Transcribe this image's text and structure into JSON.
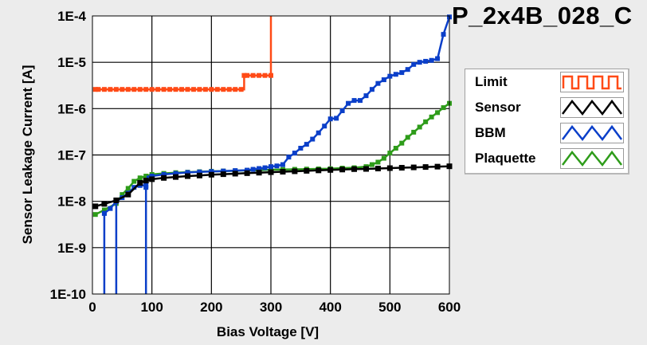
{
  "chart_data": {
    "type": "line",
    "title": "P_2x4B_028_C",
    "xlabel": "Bias Voltage [V]",
    "ylabel": "Sensor Leakage Current [A]",
    "xlim": [
      0,
      600
    ],
    "ylim": [
      1e-10,
      0.0001
    ],
    "y_scale": "log",
    "x_ticks": [
      0,
      100,
      200,
      300,
      400,
      500,
      600
    ],
    "x_tick_labels": [
      "0",
      "100",
      "200",
      "300",
      "400",
      "500",
      "600"
    ],
    "y_ticks": [
      1e-10,
      1e-09,
      1e-08,
      1e-07,
      1e-06,
      1e-05,
      0.0001
    ],
    "y_tick_labels": [
      "1E-10",
      "1E-9",
      "1E-8",
      "1E-7",
      "1E-6",
      "1E-5",
      "1E-4"
    ],
    "grid": true,
    "legend_position": "right",
    "series": [
      {
        "name": "Limit",
        "color": "#ff4a16",
        "step": true,
        "x": [
          5,
          10,
          20,
          30,
          40,
          50,
          60,
          70,
          80,
          90,
          100,
          110,
          120,
          130,
          140,
          150,
          160,
          170,
          180,
          190,
          200,
          210,
          220,
          230,
          240,
          250,
          255,
          260,
          270,
          280,
          290,
          300,
          300
        ],
        "y": [
          2.6e-06,
          2.6e-06,
          2.6e-06,
          2.6e-06,
          2.6e-06,
          2.6e-06,
          2.6e-06,
          2.6e-06,
          2.6e-06,
          2.6e-06,
          2.6e-06,
          2.6e-06,
          2.6e-06,
          2.6e-06,
          2.6e-06,
          2.6e-06,
          2.6e-06,
          2.6e-06,
          2.6e-06,
          2.6e-06,
          2.6e-06,
          2.6e-06,
          2.6e-06,
          2.6e-06,
          2.6e-06,
          2.6e-06,
          5.2e-06,
          5.2e-06,
          5.2e-06,
          5.2e-06,
          5.2e-06,
          5.2e-06,
          0.0001
        ]
      },
      {
        "name": "Sensor",
        "color": "#000000",
        "step": false,
        "x": [
          5,
          20,
          40,
          60,
          80,
          90,
          100,
          120,
          140,
          160,
          180,
          200,
          220,
          240,
          260,
          280,
          300,
          320,
          340,
          360,
          380,
          400,
          420,
          440,
          460,
          480,
          500,
          520,
          540,
          560,
          580,
          600
        ],
        "y": [
          7.8e-09,
          8.8e-09,
          1.05e-08,
          1.4e-08,
          2.5e-08,
          2.8e-08,
          3e-08,
          3.2e-08,
          3.35e-08,
          3.5e-08,
          3.6e-08,
          3.75e-08,
          3.85e-08,
          3.95e-08,
          4.05e-08,
          4.15e-08,
          4.25e-08,
          4.35e-08,
          4.45e-08,
          4.55e-08,
          4.65e-08,
          4.75e-08,
          4.85e-08,
          4.95e-08,
          5e-08,
          5.1e-08,
          5.2e-08,
          5.3e-08,
          5.4e-08,
          5.5e-08,
          5.6e-08,
          5.7e-08
        ]
      },
      {
        "name": "BBM",
        "color": "#0b3fc9",
        "step": false,
        "x": [
          20,
          20,
          20,
          30,
          40,
          40,
          40,
          50,
          60,
          70,
          80,
          90,
          90,
          90,
          95,
          100,
          120,
          140,
          160,
          180,
          200,
          220,
          240,
          260,
          270,
          280,
          290,
          300,
          310,
          320,
          330,
          340,
          350,
          360,
          370,
          380,
          390,
          400,
          410,
          420,
          430,
          440,
          450,
          460,
          470,
          480,
          490,
          500,
          510,
          520,
          530,
          540,
          550,
          560,
          570,
          580,
          590,
          600
        ],
        "y": [
          1e-10,
          5.5e-09,
          5.5e-09,
          7e-09,
          1e-08,
          1e-10,
          1e-08,
          1.2e-08,
          1.5e-08,
          2e-08,
          2.2e-08,
          2.2e-08,
          1e-10,
          2e-08,
          3.2e-08,
          3.5e-08,
          3.8e-08,
          4e-08,
          4.2e-08,
          4.3e-08,
          4.4e-08,
          4.5e-08,
          4.6e-08,
          4.7e-08,
          4.9e-08,
          5.1e-08,
          5.3e-08,
          5.6e-08,
          5.8e-08,
          6.2e-08,
          9e-08,
          1.1e-07,
          1.4e-07,
          1.7e-07,
          2.2e-07,
          3e-07,
          4.2e-07,
          6e-07,
          6.2e-07,
          9e-07,
          1.3e-06,
          1.5e-06,
          1.5e-06,
          1.9e-06,
          2.6e-06,
          3.5e-06,
          4.2e-06,
          5e-06,
          5.5e-06,
          6e-06,
          7e-06,
          9e-06,
          1e-05,
          1.05e-05,
          1.1e-05,
          1.2e-05,
          4e-05,
          9.5e-05
        ]
      },
      {
        "name": "Plaquette",
        "color": "#2e9c1a",
        "step": false,
        "x": [
          5,
          20,
          40,
          50,
          60,
          70,
          80,
          90,
          100,
          120,
          140,
          160,
          180,
          200,
          220,
          240,
          260,
          280,
          300,
          320,
          340,
          360,
          380,
          400,
          420,
          440,
          460,
          470,
          480,
          490,
          500,
          510,
          520,
          530,
          540,
          550,
          560,
          570,
          580,
          590,
          600
        ],
        "y": [
          5.2e-09,
          6.5e-09,
          9e-09,
          1.4e-08,
          1.9e-08,
          2.7e-08,
          3.2e-08,
          3.5e-08,
          3.8e-08,
          4e-08,
          4.15e-08,
          4.25e-08,
          4.35e-08,
          4.45e-08,
          4.5e-08,
          4.55e-08,
          4.65e-08,
          4.7e-08,
          4.8e-08,
          4.85e-08,
          4.9e-08,
          4.95e-08,
          5e-08,
          5.05e-08,
          5.2e-08,
          5.3e-08,
          5.6e-08,
          6.2e-08,
          7e-08,
          8.5e-08,
          1.1e-07,
          1.4e-07,
          1.8e-07,
          2.4e-07,
          3.1e-07,
          4e-07,
          5.2e-07,
          6.6e-07,
          8.2e-07,
          1.05e-06,
          1.3e-06
        ]
      }
    ]
  },
  "legend": {
    "items": [
      {
        "label": "Limit",
        "color": "#ff4a16",
        "icon": "square-wave-icon"
      },
      {
        "label": "Sensor",
        "color": "#000000",
        "icon": "triangle-wave-icon"
      },
      {
        "label": "BBM",
        "color": "#0b3fc9",
        "icon": "triangle-wave-icon"
      },
      {
        "label": "Plaquette",
        "color": "#2e9c1a",
        "icon": "triangle-wave-icon"
      }
    ]
  }
}
